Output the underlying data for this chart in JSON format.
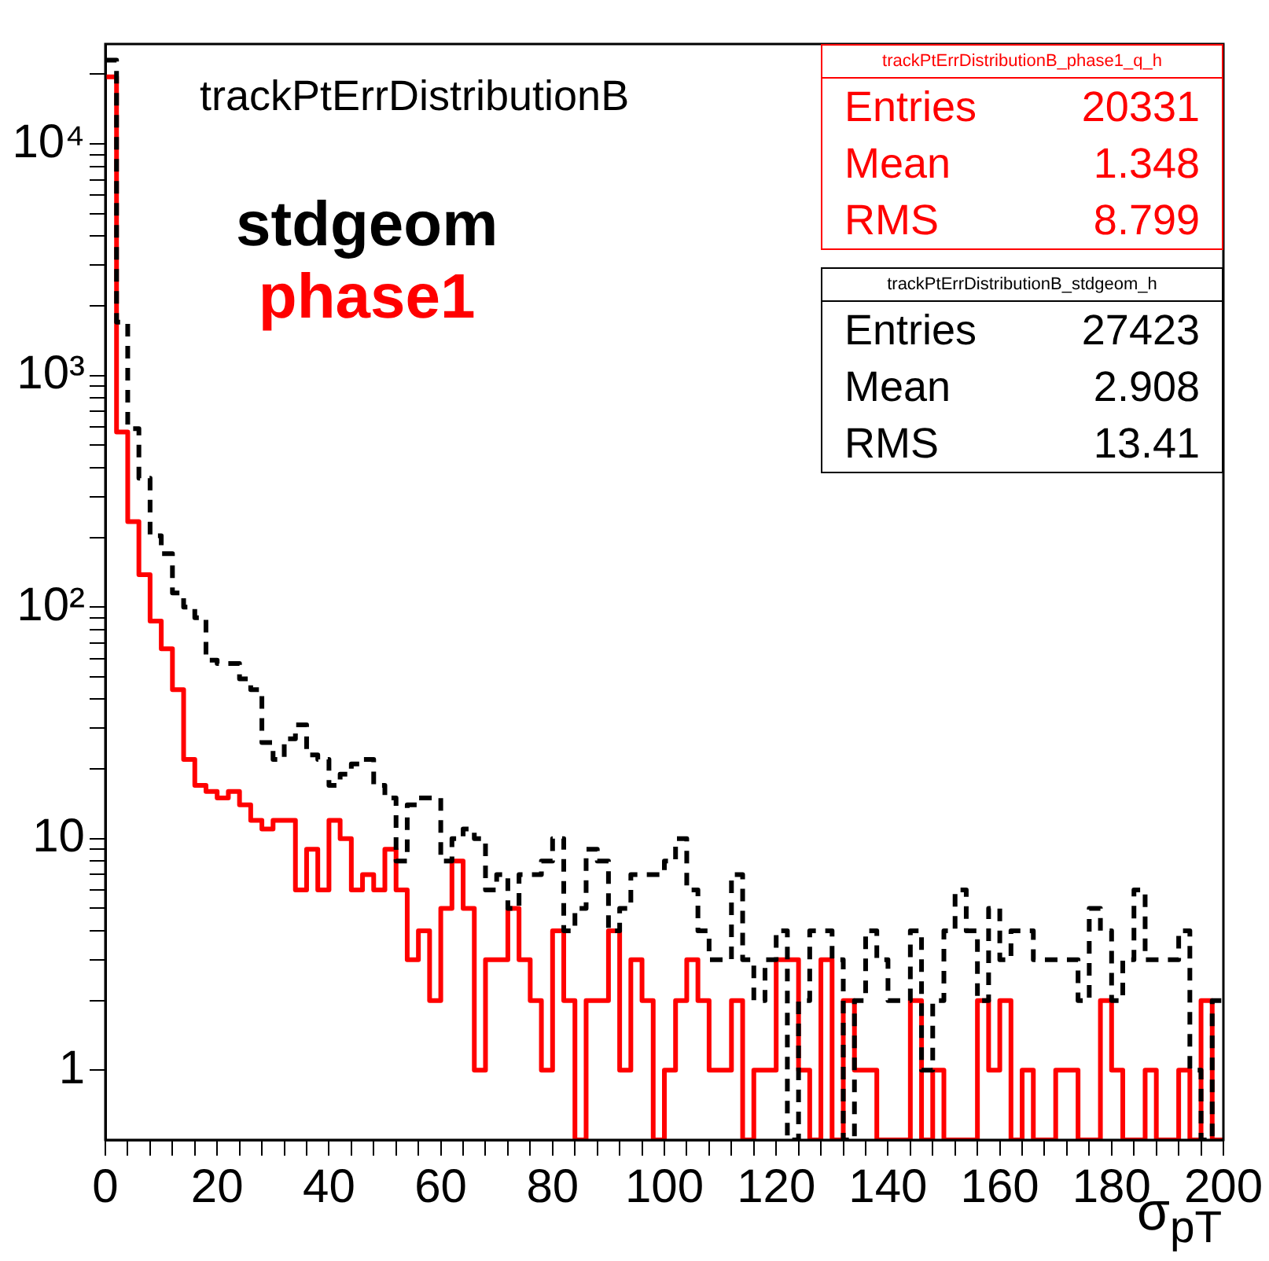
{
  "chart_data": {
    "type": "histogram",
    "title": "trackPtErrDistributionB",
    "xlabel": "σ$_{pT}$",
    "bins": [
      0,
      2,
      4,
      6,
      8,
      10,
      12,
      14,
      16,
      18,
      20,
      22,
      24,
      26,
      28,
      30,
      32,
      34,
      36,
      38,
      40,
      42,
      44,
      46,
      48,
      50,
      52,
      54,
      56,
      58,
      60,
      62,
      64,
      66,
      68,
      70,
      72,
      74,
      76,
      78,
      80,
      82,
      84,
      86,
      88,
      90,
      92,
      94,
      96,
      98,
      100,
      102,
      104,
      106,
      108,
      110,
      112,
      114,
      116,
      118,
      120,
      122,
      124,
      126,
      128,
      130,
      132,
      134,
      136,
      138,
      140,
      142,
      144,
      146,
      148,
      150,
      152,
      154,
      156,
      158,
      160,
      162,
      164,
      166,
      168,
      170,
      172,
      174,
      176,
      178,
      180,
      182,
      184,
      186,
      188,
      190,
      192,
      194,
      196,
      198,
      200
    ],
    "series": [
      {
        "name": "stdgeom",
        "color": "#000000",
        "line_style": "dashed",
        "values": [
          23000,
          1700,
          590,
          360,
          203,
          170,
          115,
          100,
          90,
          59,
          57,
          57,
          49,
          44,
          26,
          22,
          27,
          31,
          23,
          22,
          17,
          19,
          21,
          22,
          17,
          15,
          8,
          14,
          15,
          15,
          8,
          10,
          11,
          10,
          6,
          7,
          5,
          7,
          7,
          8,
          10,
          4,
          5,
          9,
          8,
          4,
          5,
          7,
          7,
          7,
          8,
          10,
          6,
          4,
          3,
          3,
          7,
          3,
          2,
          3,
          4,
          null,
          2,
          4,
          4,
          3,
          null,
          2,
          4,
          3,
          2,
          2,
          4,
          1,
          2,
          4,
          6,
          4,
          2,
          5,
          3,
          4,
          4,
          3,
          3,
          3,
          3,
          2,
          5,
          4,
          2,
          3,
          6,
          3,
          3,
          3,
          4,
          1,
          null,
          2
        ]
      },
      {
        "name": "phase1",
        "color": "#ff0000",
        "line_style": "solid",
        "values": [
          19500,
          570,
          234,
          138,
          87,
          66,
          44,
          22,
          17,
          16,
          15,
          16,
          14,
          12,
          11,
          12,
          12,
          6,
          9,
          6,
          12,
          10,
          6,
          7,
          6,
          9,
          6,
          3,
          4,
          2,
          5,
          8,
          5,
          1,
          3,
          3,
          5,
          3,
          2,
          1,
          4,
          2,
          null,
          2,
          2,
          4,
          1,
          3,
          2,
          null,
          1,
          2,
          3,
          2,
          1,
          1,
          2,
          null,
          1,
          1,
          3,
          3,
          1,
          null,
          3,
          null,
          2,
          1,
          1,
          null,
          null,
          null,
          2,
          null,
          1,
          null,
          null,
          null,
          2,
          1,
          2,
          null,
          1,
          null,
          null,
          1,
          1,
          null,
          null,
          2,
          1,
          null,
          null,
          1,
          null,
          null,
          1,
          null,
          2,
          null
        ]
      }
    ],
    "xlim": [
      0,
      200
    ],
    "xticks": [
      0,
      {
        "value": 4,
        "label": null
      },
      {
        "value": 8,
        "label": null
      },
      {
        "value": 12,
        "label": null
      },
      {
        "value": 16,
        "label": null
      },
      20,
      {
        "value": 24,
        "label": null
      },
      {
        "value": 28,
        "label": null
      },
      {
        "value": 32,
        "label": null
      },
      {
        "value": 36,
        "label": null
      },
      40,
      {
        "value": 44,
        "label": null
      },
      {
        "value": 48,
        "label": null
      },
      {
        "value": 52,
        "label": null
      },
      {
        "value": 56,
        "label": null
      },
      60,
      {
        "value": 64,
        "label": null
      },
      {
        "value": 68,
        "label": null
      },
      {
        "value": 72,
        "label": null
      },
      {
        "value": 76,
        "label": null
      },
      80,
      {
        "value": 84,
        "label": null
      },
      {
        "value": 88,
        "label": null
      },
      {
        "value": 92,
        "label": null
      },
      {
        "value": 96,
        "label": null
      },
      100,
      {
        "value": 104,
        "label": null
      },
      {
        "value": 108,
        "label": null
      },
      {
        "value": 112,
        "label": null
      },
      {
        "value": 116,
        "label": null
      },
      120,
      {
        "value": 124,
        "label": null
      },
      {
        "value": 128,
        "label": null
      },
      {
        "value": 132,
        "label": null
      },
      {
        "value": 136,
        "label": null
      },
      140,
      {
        "value": 144,
        "label": null
      },
      {
        "value": 148,
        "label": null
      },
      {
        "value": 152,
        "label": null
      },
      {
        "value": 156,
        "label": null
      },
      160,
      {
        "value": 164,
        "label": null
      },
      {
        "value": 168,
        "label": null
      },
      {
        "value": 172,
        "label": null
      },
      {
        "value": 176,
        "label": null
      },
      180,
      {
        "value": 184,
        "label": null
      },
      {
        "value": 188,
        "label": null
      },
      {
        "value": 192,
        "label": null
      },
      {
        "value": 196,
        "label": null
      },
      200
    ],
    "ylim": [
      0.5,
      27000
    ],
    "yticks": [
      1,
      {
        "value": 2,
        "label": null
      },
      {
        "value": 3,
        "label": null
      },
      {
        "value": 4,
        "label": null
      },
      {
        "value": 5,
        "label": null
      },
      {
        "value": 6,
        "label": null
      },
      {
        "value": 7,
        "label": null
      },
      {
        "value": 8,
        "label": null
      },
      {
        "value": 9,
        "label": null
      },
      10,
      {
        "value": 20,
        "label": null
      },
      {
        "value": 30,
        "label": null
      },
      {
        "value": 40,
        "label": null
      },
      {
        "value": 50,
        "label": null
      },
      {
        "value": 60,
        "label": null
      },
      {
        "value": 70,
        "label": null
      },
      {
        "value": 80,
        "label": null
      },
      {
        "value": 90,
        "label": null
      },
      {
        "value": 100,
        "label": "10²"
      },
      {
        "value": 200,
        "label": null
      },
      {
        "value": 300,
        "label": null
      },
      {
        "value": 400,
        "label": null
      },
      {
        "value": 500,
        "label": null
      },
      {
        "value": 600,
        "label": null
      },
      {
        "value": 700,
        "label": null
      },
      {
        "value": 800,
        "label": null
      },
      {
        "value": 900,
        "label": null
      },
      {
        "value": 1000,
        "label": "10³"
      },
      {
        "value": 2000,
        "label": null
      },
      {
        "value": 3000,
        "label": null
      },
      {
        "value": 4000,
        "label": null
      },
      {
        "value": 5000,
        "label": null
      },
      {
        "value": 6000,
        "label": null
      },
      {
        "value": 7000,
        "label": null
      },
      {
        "value": 8000,
        "label": null
      },
      {
        "value": 9000,
        "label": null
      },
      {
        "value": 10000,
        "label": "10⁴"
      },
      {
        "value": 20000,
        "label": null
      }
    ],
    "log": true,
    "grid": false,
    "legend": "top left",
    "annotations": [
      "trackPtErrDistributionB_phase1_q_h",
      "Entries 20331",
      "Mean 1.348",
      "RMS 8.799",
      "trackPtErrDistributionB_stdgeom_h",
      "Entries 27423",
      "Mean 2.908",
      "RMS 13.41"
    ]
  }
}
